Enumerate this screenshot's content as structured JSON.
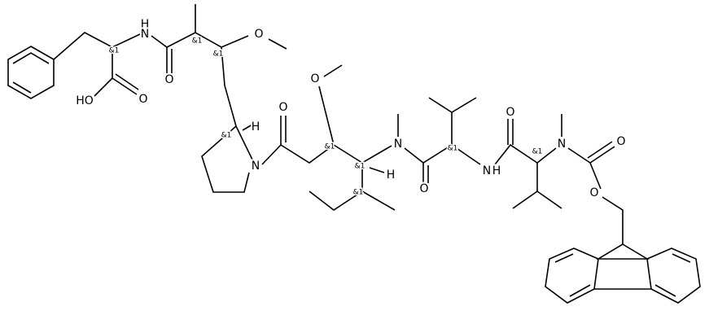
{
  "molecule": {
    "labels": [
      "H",
      "N",
      "&1",
      "HO",
      "O",
      "O",
      "&1",
      "&1",
      "O",
      "&1",
      "H",
      "N",
      "O",
      "O",
      "&1",
      "N",
      "&1",
      "H",
      "&1",
      "O",
      "&1",
      "N",
      "H",
      "O",
      "&1",
      "N",
      "O",
      "O"
    ]
  }
}
